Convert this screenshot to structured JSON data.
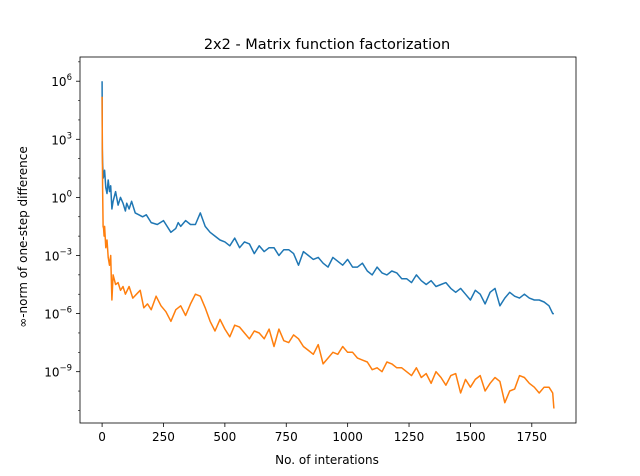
{
  "chart_data": {
    "type": "line",
    "title": "2x2 - Matrix function factorization",
    "xlabel": "No. of interations",
    "ylabel": "∞-norm of one-step difference",
    "xlim": [
      -90,
      1930
    ],
    "ylim_log10": [
      -11.65,
      7.25
    ],
    "yscale": "log",
    "grid": false,
    "legend": "none",
    "x_ticks": [
      {
        "value": 0,
        "label": "0"
      },
      {
        "value": 250,
        "label": "250"
      },
      {
        "value": 500,
        "label": "500"
      },
      {
        "value": 750,
        "label": "750"
      },
      {
        "value": 1000,
        "label": "1000"
      },
      {
        "value": 1250,
        "label": "1250"
      },
      {
        "value": 1500,
        "label": "1500"
      },
      {
        "value": 1750,
        "label": "1750"
      }
    ],
    "y_ticks": [
      {
        "exp": 6,
        "base": "10",
        "sup": "6"
      },
      {
        "exp": 3,
        "base": "10",
        "sup": "3"
      },
      {
        "exp": 0,
        "base": "10",
        "sup": "0"
      },
      {
        "exp": -3,
        "base": "10",
        "sup": "−3"
      },
      {
        "exp": -6,
        "base": "10",
        "sup": "−6"
      },
      {
        "exp": -9,
        "base": "10",
        "sup": "−9"
      }
    ],
    "series": [
      {
        "color": "#1f77b4",
        "x": [
          0,
          1,
          2,
          5,
          10,
          15,
          20,
          25,
          30,
          35,
          40,
          45,
          55,
          65,
          75,
          85,
          95,
          100,
          110,
          120,
          135,
          150,
          165,
          180,
          200,
          225,
          250,
          280,
          300,
          310,
          320,
          340,
          360,
          380,
          400,
          420,
          440,
          460,
          480,
          500,
          520,
          540,
          560,
          580,
          600,
          620,
          640,
          660,
          680,
          700,
          720,
          740,
          760,
          780,
          800,
          820,
          840,
          860,
          880,
          900,
          920,
          940,
          960,
          980,
          1000,
          1020,
          1040,
          1060,
          1080,
          1100,
          1120,
          1140,
          1160,
          1180,
          1200,
          1220,
          1240,
          1260,
          1280,
          1300,
          1320,
          1340,
          1360,
          1380,
          1400,
          1420,
          1440,
          1460,
          1480,
          1500,
          1520,
          1540,
          1560,
          1580,
          1600,
          1620,
          1640,
          1660,
          1680,
          1700,
          1720,
          1740,
          1760,
          1780,
          1800,
          1820,
          1835,
          1840
        ],
        "log10_y": [
          6.0,
          2.5,
          1.8,
          1.0,
          1.4,
          0.5,
          0.2,
          0.9,
          0.3,
          0.6,
          -0.6,
          -0.2,
          0.3,
          -0.4,
          0.0,
          -0.3,
          -0.7,
          -0.3,
          -0.6,
          -0.2,
          -0.8,
          -0.9,
          -1.0,
          -0.9,
          -1.3,
          -1.4,
          -1.2,
          -1.8,
          -1.6,
          -1.3,
          -1.5,
          -1.2,
          -1.4,
          -1.4,
          -0.8,
          -1.5,
          -1.8,
          -2.0,
          -2.2,
          -2.3,
          -2.5,
          -2.1,
          -2.6,
          -2.3,
          -2.4,
          -2.9,
          -2.5,
          -2.8,
          -2.6,
          -2.6,
          -3.0,
          -2.7,
          -2.7,
          -2.9,
          -3.5,
          -2.8,
          -3.0,
          -3.2,
          -3.1,
          -3.4,
          -3.6,
          -3.1,
          -3.3,
          -3.5,
          -3.2,
          -3.6,
          -3.6,
          -3.4,
          -3.8,
          -4.0,
          -3.6,
          -3.9,
          -4.0,
          -3.8,
          -3.9,
          -4.2,
          -4.2,
          -4.4,
          -4.0,
          -4.3,
          -4.5,
          -4.3,
          -4.6,
          -4.5,
          -4.4,
          -4.7,
          -4.9,
          -4.7,
          -5.0,
          -5.3,
          -4.8,
          -5.0,
          -5.5,
          -4.9,
          -4.7,
          -5.6,
          -5.2,
          -4.9,
          -5.1,
          -5.2,
          -5.0,
          -5.2,
          -5.3,
          -5.3,
          -5.4,
          -5.6,
          -6.0,
          -6.0
        ]
      },
      {
        "color": "#ff7f0e",
        "x": [
          0,
          1,
          2,
          4,
          6,
          8,
          10,
          15,
          20,
          25,
          30,
          35,
          40,
          45,
          55,
          65,
          75,
          85,
          95,
          110,
          125,
          140,
          155,
          170,
          185,
          200,
          220,
          240,
          260,
          280,
          300,
          320,
          340,
          360,
          380,
          400,
          420,
          440,
          460,
          480,
          500,
          520,
          540,
          560,
          580,
          600,
          620,
          640,
          660,
          680,
          700,
          720,
          740,
          760,
          780,
          800,
          820,
          840,
          860,
          880,
          900,
          920,
          940,
          960,
          980,
          1000,
          1020,
          1040,
          1060,
          1080,
          1100,
          1120,
          1140,
          1160,
          1180,
          1200,
          1220,
          1240,
          1260,
          1280,
          1300,
          1320,
          1340,
          1360,
          1380,
          1400,
          1420,
          1440,
          1460,
          1480,
          1500,
          1520,
          1540,
          1560,
          1580,
          1600,
          1620,
          1640,
          1660,
          1680,
          1700,
          1720,
          1740,
          1760,
          1780,
          1800,
          1820,
          1835,
          1840
        ],
        "log10_y": [
          5.2,
          3.0,
          0.5,
          -1.5,
          -1.6,
          -2.0,
          -1.5,
          -2.6,
          -2.2,
          -3.1,
          -3.5,
          -3.0,
          -5.3,
          -4.0,
          -4.5,
          -4.4,
          -4.8,
          -4.6,
          -5.0,
          -4.6,
          -5.2,
          -5.0,
          -4.8,
          -5.7,
          -5.5,
          -5.8,
          -5.1,
          -5.6,
          -5.9,
          -6.4,
          -5.8,
          -5.6,
          -6.1,
          -5.5,
          -5.0,
          -5.1,
          -5.7,
          -6.4,
          -6.9,
          -6.3,
          -6.8,
          -7.2,
          -6.6,
          -6.7,
          -7.0,
          -7.3,
          -6.9,
          -7.0,
          -7.3,
          -6.8,
          -7.7,
          -6.8,
          -7.4,
          -7.5,
          -7.1,
          -7.3,
          -7.7,
          -7.9,
          -8.1,
          -7.6,
          -8.6,
          -8.3,
          -8.0,
          -8.1,
          -7.7,
          -8.0,
          -8.0,
          -8.3,
          -8.4,
          -8.5,
          -8.9,
          -8.8,
          -9.0,
          -8.5,
          -8.6,
          -8.8,
          -8.8,
          -9.0,
          -9.2,
          -8.8,
          -9.3,
          -9.1,
          -9.6,
          -9.0,
          -9.3,
          -9.7,
          -9.2,
          -9.1,
          -10.1,
          -9.4,
          -9.8,
          -9.4,
          -9.2,
          -10.0,
          -9.6,
          -9.3,
          -9.5,
          -10.6,
          -10.0,
          -9.9,
          -9.2,
          -9.3,
          -9.6,
          -9.8,
          -10.1,
          -9.8,
          -9.8,
          -10.1,
          -10.9
        ]
      }
    ]
  }
}
